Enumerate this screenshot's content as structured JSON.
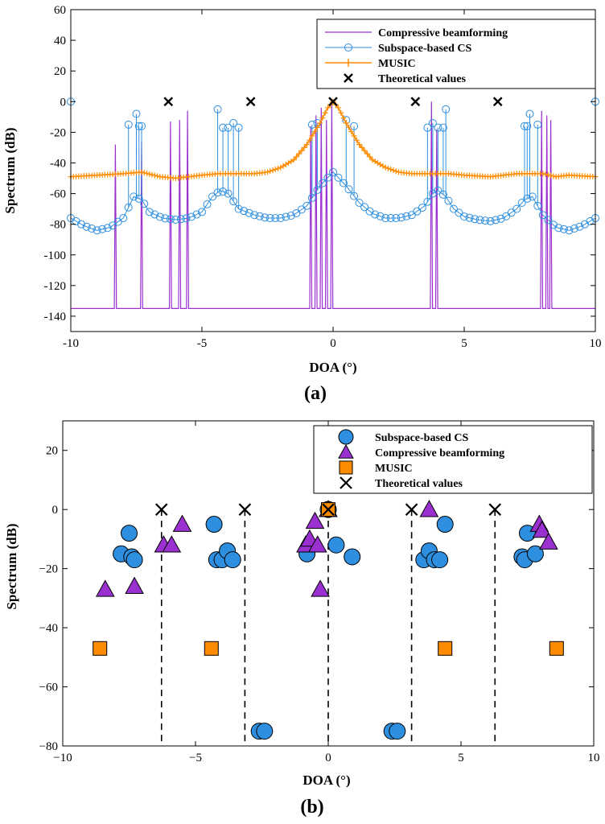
{
  "chart_data": [
    {
      "id": "a",
      "type": "line",
      "panel_label": "(a)",
      "title": "",
      "xlabel": "DOA (°)",
      "ylabel": "Spectrum (dB)",
      "xlim": [
        -10,
        10
      ],
      "ylim": [
        -150,
        60
      ],
      "xticks": [
        -10,
        -5,
        0,
        5,
        10
      ],
      "yticks": [
        60,
        40,
        20,
        0,
        -20,
        -40,
        -60,
        -80,
        -100,
        -120,
        -140
      ],
      "grid": false,
      "legend_position": "top-right",
      "series": [
        {
          "name": "Compressive beamforming",
          "color": "#9b30d0",
          "marker": "none",
          "floor_db": -135,
          "peaks": [
            {
              "x": -8.3,
              "y": -28
            },
            {
              "x": -7.3,
              "y": -26
            },
            {
              "x": -6.2,
              "y": -13
            },
            {
              "x": -5.85,
              "y": -12
            },
            {
              "x": -5.55,
              "y": -6
            },
            {
              "x": -0.85,
              "y": -16
            },
            {
              "x": -0.65,
              "y": -9
            },
            {
              "x": -0.45,
              "y": -4
            },
            {
              "x": -0.25,
              "y": -12
            },
            {
              "x": -0.05,
              "y": 0
            },
            {
              "x": 3.75,
              "y": 0
            },
            {
              "x": 3.95,
              "y": -18
            },
            {
              "x": 7.95,
              "y": -6
            },
            {
              "x": 8.15,
              "y": -9
            },
            {
              "x": 8.3,
              "y": -12
            }
          ]
        },
        {
          "name": "Subspace-based CS",
          "color": "#2e8fe0",
          "marker": "open-circle",
          "background": [
            [
              -10,
              -76
            ],
            [
              -9.5,
              -81
            ],
            [
              -9,
              -84
            ],
            [
              -8.5,
              -82
            ],
            [
              -8,
              -76
            ],
            [
              -7.6,
              -62
            ],
            [
              -7.3,
              -64
            ],
            [
              -7,
              -72
            ],
            [
              -6.5,
              -76
            ],
            [
              -6,
              -77
            ],
            [
              -5.5,
              -76
            ],
            [
              -5,
              -72
            ],
            [
              -4.6,
              -62
            ],
            [
              -4.3,
              -58
            ],
            [
              -4,
              -60
            ],
            [
              -3.6,
              -70
            ],
            [
              -3,
              -74
            ],
            [
              -2.5,
              -76
            ],
            [
              -2,
              -76
            ],
            [
              -1.5,
              -74
            ],
            [
              -1,
              -68
            ],
            [
              -0.5,
              -55
            ],
            [
              0,
              -46
            ],
            [
              0.5,
              -55
            ],
            [
              1,
              -66
            ],
            [
              1.5,
              -73
            ],
            [
              2,
              -76
            ],
            [
              2.5,
              -76
            ],
            [
              3,
              -74
            ],
            [
              3.5,
              -68
            ],
            [
              3.8,
              -60
            ],
            [
              4,
              -58
            ],
            [
              4.3,
              -62
            ],
            [
              4.6,
              -70
            ],
            [
              5,
              -75
            ],
            [
              5.5,
              -77
            ],
            [
              6,
              -78
            ],
            [
              6.5,
              -76
            ],
            [
              7,
              -70
            ],
            [
              7.3,
              -64
            ],
            [
              7.6,
              -62
            ],
            [
              8,
              -74
            ],
            [
              8.5,
              -82
            ],
            [
              9,
              -84
            ],
            [
              9.5,
              -81
            ],
            [
              10,
              -76
            ]
          ],
          "peaks": [
            {
              "x": -10,
              "y": 0
            },
            {
              "x": -7.8,
              "y": -15
            },
            {
              "x": -7.5,
              "y": -8
            },
            {
              "x": -7.4,
              "y": -16
            },
            {
              "x": -7.3,
              "y": -16
            },
            {
              "x": -4.4,
              "y": -5
            },
            {
              "x": -4.2,
              "y": -17
            },
            {
              "x": -4.0,
              "y": -17
            },
            {
              "x": -3.8,
              "y": -14
            },
            {
              "x": -3.6,
              "y": -17
            },
            {
              "x": -0.8,
              "y": -15
            },
            {
              "x": -0.6,
              "y": -14
            },
            {
              "x": 0.5,
              "y": -12
            },
            {
              "x": 0.8,
              "y": -16
            },
            {
              "x": 3.8,
              "y": -14
            },
            {
              "x": 3.6,
              "y": -17
            },
            {
              "x": 4.0,
              "y": -17
            },
            {
              "x": 4.2,
              "y": -17
            },
            {
              "x": 4.3,
              "y": -5
            },
            {
              "x": 7.3,
              "y": -16
            },
            {
              "x": 7.4,
              "y": -16
            },
            {
              "x": 7.5,
              "y": -8
            },
            {
              "x": 7.8,
              "y": -15
            },
            {
              "x": 10,
              "y": 0
            }
          ]
        },
        {
          "name": "MUSIC",
          "color": "#ff8c00",
          "marker": "plus",
          "points": [
            [
              -10,
              -49
            ],
            [
              -9,
              -48
            ],
            [
              -8,
              -47
            ],
            [
              -7.3,
              -46
            ],
            [
              -6.6,
              -49
            ],
            [
              -6,
              -50
            ],
            [
              -5,
              -48
            ],
            [
              -4.4,
              -47
            ],
            [
              -3.6,
              -47
            ],
            [
              -3,
              -47
            ],
            [
              -2.5,
              -46
            ],
            [
              -2,
              -43
            ],
            [
              -1.5,
              -38
            ],
            [
              -1,
              -28
            ],
            [
              -0.5,
              -14
            ],
            [
              -0.2,
              -4
            ],
            [
              0,
              0
            ],
            [
              0.2,
              -4
            ],
            [
              0.5,
              -14
            ],
            [
              1,
              -28
            ],
            [
              1.5,
              -38
            ],
            [
              2,
              -43
            ],
            [
              2.5,
              -46
            ],
            [
              3,
              -47
            ],
            [
              4,
              -47
            ],
            [
              4.4,
              -47
            ],
            [
              5,
              -48
            ],
            [
              6,
              -49
            ],
            [
              7,
              -47
            ],
            [
              8,
              -47
            ],
            [
              8.5,
              -49
            ],
            [
              9,
              -48
            ],
            [
              10,
              -49
            ]
          ]
        },
        {
          "name": "Theoretical values",
          "color": "#000000",
          "marker": "x",
          "x": [
            -6.28,
            -3.14,
            0,
            3.14,
            6.28
          ],
          "y": [
            0,
            0,
            0,
            0,
            0
          ]
        }
      ]
    },
    {
      "id": "b",
      "type": "scatter",
      "panel_label": "(b)",
      "title": "",
      "xlabel": "DOA (°)",
      "ylabel": "Spectrum (dB)",
      "xlim": [
        -10,
        10
      ],
      "ylim": [
        -80,
        30
      ],
      "xticks": [
        -10,
        -5,
        0,
        5,
        10
      ],
      "yticks": [
        20,
        0,
        -20,
        -40,
        -60,
        -80
      ],
      "grid": false,
      "legend_position": "top-right",
      "reference_lines_x": [
        -6.28,
        -3.14,
        0,
        3.14,
        6.28
      ],
      "series": [
        {
          "name": "Subspace-based CS",
          "color": "#2e8fe0",
          "marker": "circle",
          "points": [
            [
              -7.5,
              -8
            ],
            [
              -7.8,
              -15
            ],
            [
              -7.4,
              -16
            ],
            [
              -7.3,
              -17
            ],
            [
              -4.3,
              -5
            ],
            [
              -4.2,
              -17
            ],
            [
              -4.0,
              -17
            ],
            [
              -3.8,
              -14
            ],
            [
              -3.6,
              -17
            ],
            [
              -2.6,
              -75
            ],
            [
              -2.4,
              -75
            ],
            [
              -0.8,
              -15
            ],
            [
              0.3,
              -12
            ],
            [
              0.9,
              -16
            ],
            [
              0,
              0
            ],
            [
              3.6,
              -17
            ],
            [
              3.8,
              -14
            ],
            [
              4.0,
              -17
            ],
            [
              4.2,
              -17
            ],
            [
              4.4,
              -5
            ],
            [
              2.4,
              -75
            ],
            [
              2.6,
              -75
            ],
            [
              7.3,
              -16
            ],
            [
              7.4,
              -17
            ],
            [
              7.5,
              -8
            ],
            [
              7.8,
              -15
            ]
          ]
        },
        {
          "name": "Compressive beamforming",
          "color": "#9b30d0",
          "marker": "triangle",
          "points": [
            [
              -8.4,
              -27
            ],
            [
              -7.3,
              -26
            ],
            [
              -6.2,
              -12
            ],
            [
              -5.9,
              -12
            ],
            [
              -5.5,
              -5
            ],
            [
              -0.85,
              -12
            ],
            [
              -0.7,
              -10
            ],
            [
              -0.5,
              -4
            ],
            [
              -0.4,
              -12
            ],
            [
              -0.3,
              -27
            ],
            [
              0,
              0
            ],
            [
              3.8,
              0
            ],
            [
              7.95,
              -5
            ],
            [
              8.05,
              -7
            ],
            [
              8.3,
              -11
            ]
          ]
        },
        {
          "name": "MUSIC",
          "color": "#ff8c00",
          "marker": "square",
          "points": [
            [
              -8.6,
              -47
            ],
            [
              -4.4,
              -47
            ],
            [
              0,
              0
            ],
            [
              4.4,
              -47
            ],
            [
              8.6,
              -47
            ]
          ]
        },
        {
          "name": "Theoretical values",
          "color": "#000000",
          "marker": "x",
          "x": [
            -6.28,
            -3.14,
            0,
            3.14,
            6.28
          ],
          "y": [
            0,
            0,
            0,
            0,
            0
          ]
        }
      ]
    }
  ]
}
